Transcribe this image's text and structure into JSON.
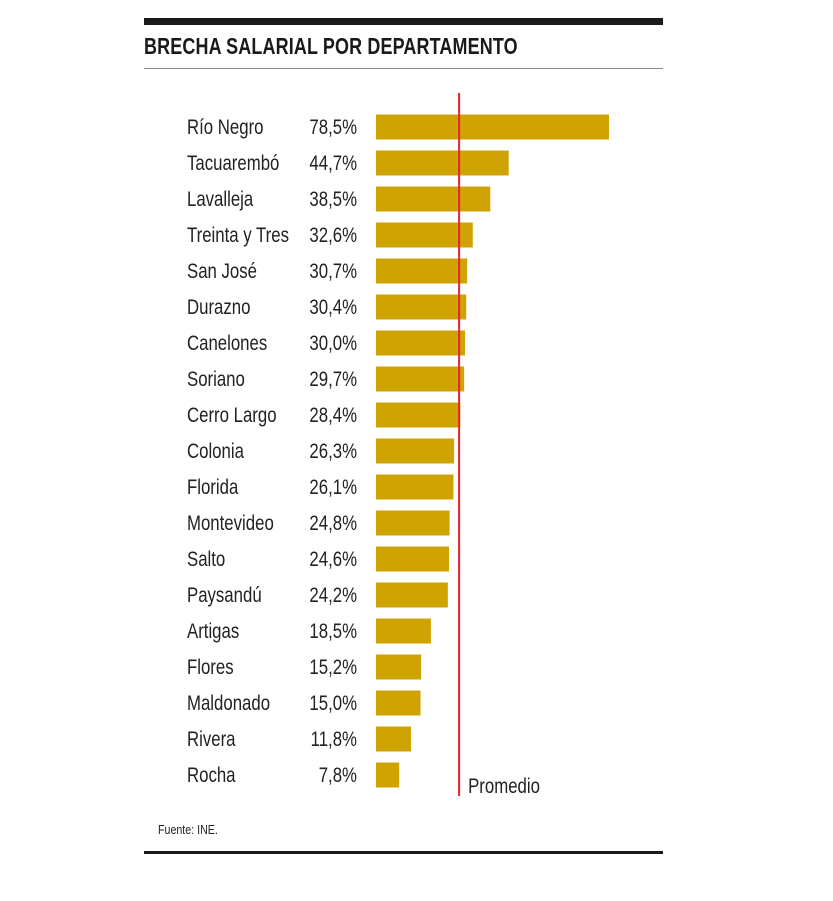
{
  "title": "BRECHA SALARIAL POR DEPARTAMENTO",
  "source": "Fuente: INE.",
  "chart_data": {
    "type": "bar",
    "orientation": "horizontal",
    "title": "BRECHA SALARIAL POR DEPARTAMENTO",
    "categories": [
      "Río Negro",
      "Tacuarembó",
      "Lavalleja",
      "Treinta y Tres",
      "San José",
      "Durazno",
      "Canelones",
      "Soriano",
      "Cerro Largo",
      "Colonia",
      "Florida",
      "Montevideo",
      "Salto",
      "Paysandú",
      "Artigas",
      "Flores",
      "Maldonado",
      "Rivera",
      "Rocha"
    ],
    "values": [
      78.5,
      44.7,
      38.5,
      32.6,
      30.7,
      30.4,
      30.0,
      29.7,
      28.4,
      26.3,
      26.1,
      24.8,
      24.6,
      24.2,
      18.5,
      15.2,
      15.0,
      11.8,
      7.8
    ],
    "value_labels": [
      "78,5%",
      "44,7%",
      "38,5%",
      "32,6%",
      "30,7%",
      "30,4%",
      "30,0%",
      "29,7%",
      "28,4%",
      "26,3%",
      "26,1%",
      "24,8%",
      "24,6%",
      "24,2%",
      "18,5%",
      "15,2%",
      "15,0%",
      "11,8%",
      "7,8%"
    ],
    "reference_line": {
      "label": "Promedio",
      "value": 28.0,
      "color": "#e8232a"
    },
    "bar_color": "#cfa304",
    "xlim": [
      0,
      78.5
    ],
    "grid": false,
    "legend": "none"
  }
}
